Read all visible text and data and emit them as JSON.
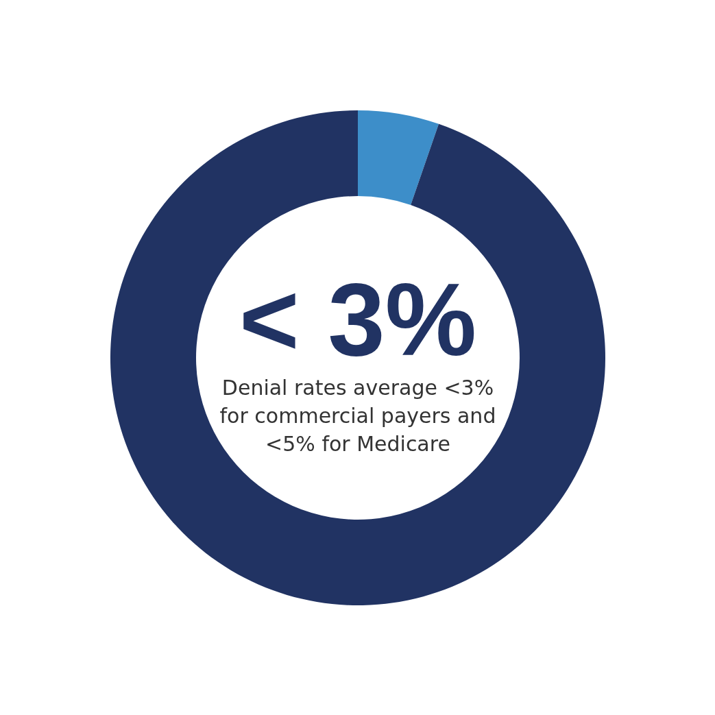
{
  "chart_data": {
    "type": "donut",
    "title": "< 3%",
    "categories": [
      null,
      null
    ],
    "values": [
      5.3,
      94.7
    ],
    "colors": [
      "#3d8ec9",
      "#213363"
    ],
    "annotations": [
      "Denial rates average <3% for commercial payers and <5% for Medicare"
    ]
  }
}
